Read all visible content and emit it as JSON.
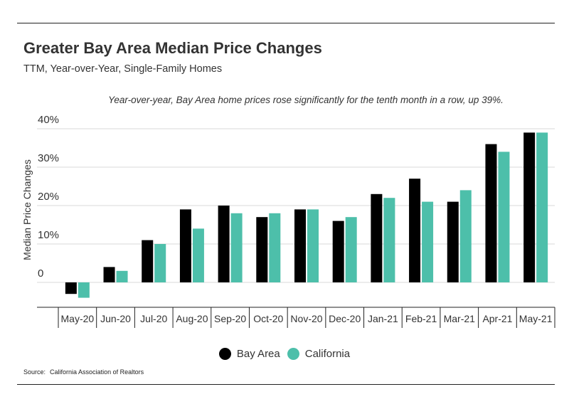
{
  "title": "Greater Bay Area Median Price Changes",
  "subtitle": "TTM, Year-over-Year, Single-Family Homes",
  "annotation": "Year-over-year, Bay Area home prices rose significantly for the tenth month in a row, up 39%.",
  "source": {
    "label": "Source:",
    "text": "California Association of Realtors"
  },
  "colors": {
    "bay_area": "#000000",
    "california": "#4dbfaa",
    "grid": "#d9d9d9",
    "axis": "#222222"
  },
  "chart_data": {
    "type": "bar",
    "title": "Greater Bay Area Median Price Changes",
    "subtitle": "TTM, Year-over-Year, Single-Family Homes",
    "xlabel": "",
    "ylabel": "Median Price Changes",
    "ylim": [
      -6,
      40
    ],
    "yticks": [
      0,
      10,
      20,
      30,
      40
    ],
    "ytick_labels": [
      "0",
      "10%",
      "20%",
      "30%",
      "40%"
    ],
    "grid": true,
    "legend_position": "bottom-center",
    "categories": [
      "May-20",
      "Jun-20",
      "Jul-20",
      "Aug-20",
      "Sep-20",
      "Oct-20",
      "Nov-20",
      "Dec-20",
      "Jan-21",
      "Feb-21",
      "Mar-21",
      "Apr-21",
      "May-21"
    ],
    "series": [
      {
        "name": "Bay Area",
        "color": "#000000",
        "values": [
          -3,
          4,
          11,
          19,
          20,
          17,
          19,
          16,
          23,
          27,
          21,
          36,
          39
        ]
      },
      {
        "name": "California",
        "color": "#4dbfaa",
        "values": [
          -4,
          3,
          10,
          14,
          18,
          18,
          19,
          17,
          22,
          21,
          24,
          34,
          39
        ]
      }
    ]
  }
}
